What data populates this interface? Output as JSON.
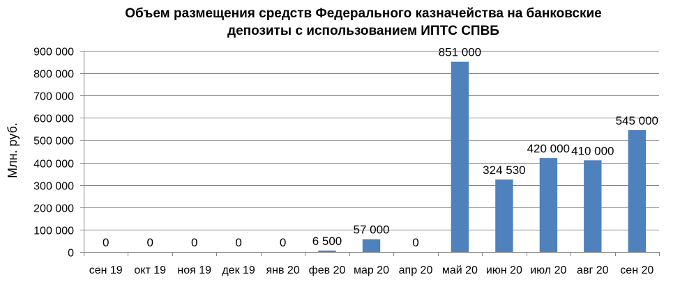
{
  "chart_data": {
    "type": "bar",
    "title_line1": "Объем размещения средств Федерального казначейства на банковские",
    "title_line2": "депозиты с использованием ИПТС СПВБ",
    "ylabel": "Млн. руб.",
    "xlabel": "",
    "ylim": [
      0,
      900000
    ],
    "grid": true,
    "legend": "none",
    "bar_color": "#4f81bd",
    "yticks": [
      "0",
      "100 000",
      "200 000",
      "300 000",
      "400 000",
      "500 000",
      "600 000",
      "700 000",
      "800 000",
      "900 000"
    ],
    "categories": [
      "сен 19",
      "окт 19",
      "ноя 19",
      "дек 19",
      "янв 20",
      "фев 20",
      "мар 20",
      "апр 20",
      "май 20",
      "июн 20",
      "июл 20",
      "авг 20",
      "сен 20"
    ],
    "values": [
      0,
      0,
      0,
      0,
      0,
      6500,
      57000,
      0,
      851000,
      324530,
      420000,
      410000,
      545000
    ],
    "data_labels": [
      "0",
      "0",
      "0",
      "0",
      "0",
      "6 500",
      "57 000",
      "0",
      "851 000",
      "324 530",
      "420 000",
      "410 000",
      "545 000"
    ]
  }
}
